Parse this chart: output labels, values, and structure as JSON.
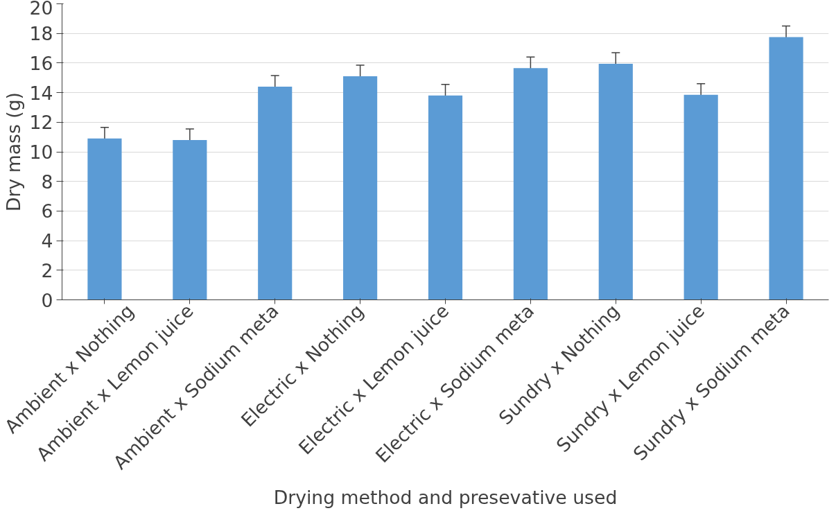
{
  "chart_data": {
    "type": "bar",
    "xlabel": "Drying method and presevative used",
    "ylabel": "Dry mass (g)",
    "categories": [
      "Ambient x Nothing",
      "Ambient x Lemon juice",
      "Ambient x Sodium meta",
      "Electric x Nothing",
      "Electric x Lemon juice",
      "Electric x Sodium meta",
      "Sundry x Nothing",
      "Sundry x Lemon juice",
      "Sundry x Sodium meta"
    ],
    "values": [
      10.9,
      10.8,
      14.4,
      15.1,
      13.8,
      15.65,
      15.95,
      13.85,
      17.75
    ],
    "errors": [
      0.75,
      0.75,
      0.75,
      0.75,
      0.75,
      0.75,
      0.75,
      0.75,
      0.75
    ],
    "color": "#5b9bd5",
    "ylim": [
      0,
      20
    ],
    "yticks": [
      0,
      2,
      4,
      6,
      8,
      10,
      12,
      14,
      16,
      18,
      20
    ],
    "grid": "y"
  }
}
